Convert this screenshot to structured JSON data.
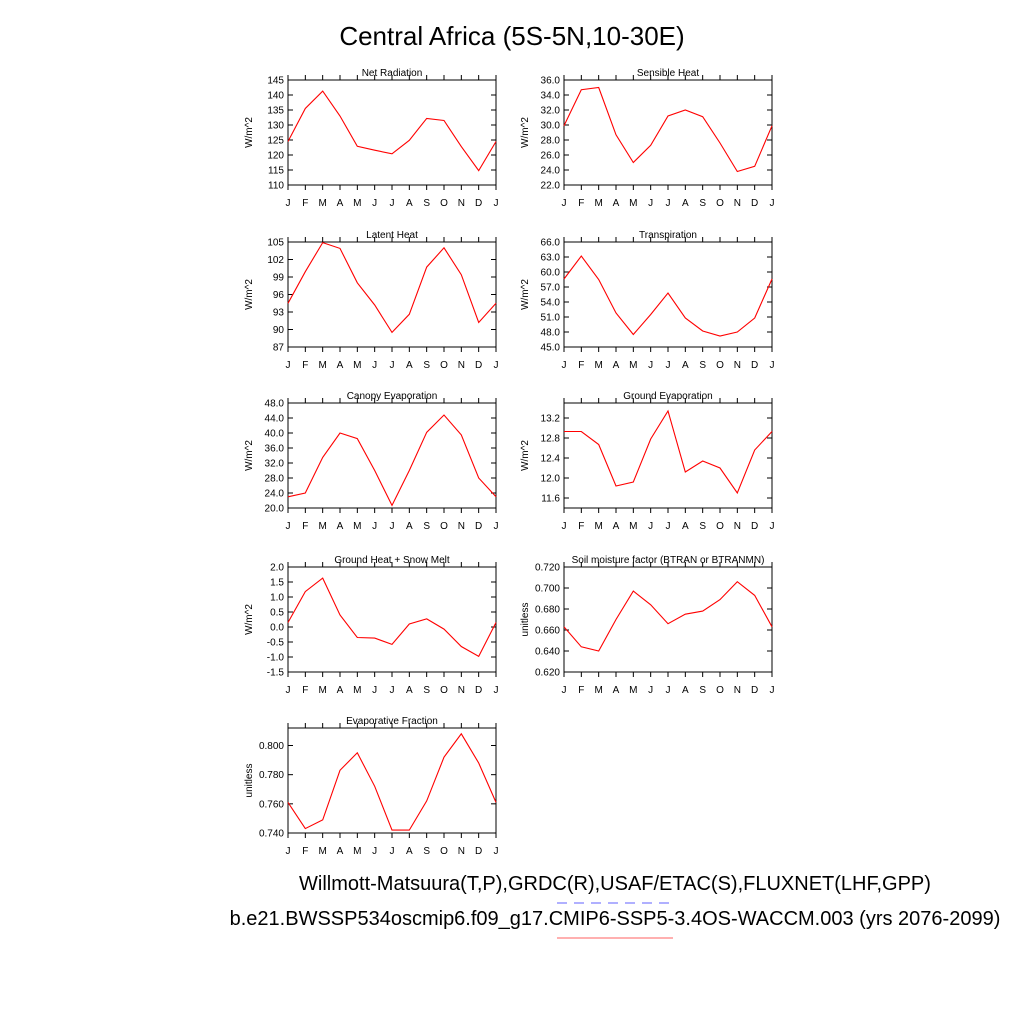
{
  "title": "Central Africa (5S-5N,10-30E)",
  "legend": {
    "obs_label": "Willmott-Matsuura(T,P),GRDC(R),USAF/ETAC(S),FLUXNET(LHF,GPP)",
    "obs_color": "#8080ff",
    "model_label": "b.e21.BWSSP534oscmip6.f09_g17.CMIP6-SSP5-3.4OS-WACCM.003 (yrs 2076-2099)",
    "model_color": "#ff8080"
  },
  "line_color": "#ff0000",
  "months": [
    "J",
    "F",
    "M",
    "A",
    "M",
    "J",
    "J",
    "A",
    "S",
    "O",
    "N",
    "D",
    "J"
  ],
  "chart_data": [
    {
      "type": "line",
      "title": "Net Radiation",
      "ylabel": "W/m^2",
      "ylim": [
        110,
        145
      ],
      "yticks": [
        110,
        115,
        120,
        125,
        130,
        135,
        140,
        145
      ],
      "ytick_labels": [
        "110",
        "115",
        "120",
        "125",
        "130",
        "135",
        "140",
        "145"
      ],
      "values": [
        124.5,
        135.5,
        141.3,
        133.0,
        122.9,
        121.6,
        120.4,
        124.9,
        132.2,
        131.5,
        122.8,
        114.8,
        124.5
      ]
    },
    {
      "type": "line",
      "title": "Sensible Heat",
      "ylabel": "W/m^2",
      "ylim": [
        22,
        36
      ],
      "yticks": [
        22,
        24,
        26,
        28,
        30,
        32,
        34,
        36
      ],
      "ytick_labels": [
        "22.0",
        "24.0",
        "26.0",
        "28.0",
        "30.0",
        "32.0",
        "34.0",
        "36.0"
      ],
      "values": [
        29.9,
        34.7,
        35.0,
        28.7,
        25.0,
        27.3,
        31.2,
        32.0,
        31.1,
        27.6,
        23.8,
        24.5,
        29.9
      ]
    },
    {
      "type": "line",
      "title": "Latent Heat",
      "ylabel": "W/m^2",
      "ylim": [
        87,
        105
      ],
      "yticks": [
        87,
        90,
        93,
        96,
        99,
        102,
        105
      ],
      "ytick_labels": [
        "87",
        "90",
        "93",
        "96",
        "99",
        "102",
        "105"
      ],
      "values": [
        94.5,
        99.9,
        104.9,
        103.9,
        98.0,
        94.2,
        89.5,
        92.6,
        100.7,
        104.0,
        99.4,
        91.2,
        94.5
      ]
    },
    {
      "type": "line",
      "title": "Transpiration",
      "ylabel": "W/m^2",
      "ylim": [
        45,
        66
      ],
      "yticks": [
        45,
        48,
        51,
        54,
        57,
        60,
        63,
        66
      ],
      "ytick_labels": [
        "45.0",
        "48.0",
        "51.0",
        "54.0",
        "57.0",
        "60.0",
        "63.0",
        "66.0"
      ],
      "values": [
        58.6,
        63.2,
        58.5,
        51.8,
        47.5,
        51.5,
        55.8,
        50.8,
        48.2,
        47.2,
        48.0,
        50.8,
        58.6
      ]
    },
    {
      "type": "line",
      "title": "Canopy Evaporation",
      "ylabel": "W/m^2",
      "ylim": [
        20,
        48
      ],
      "yticks": [
        20,
        24,
        28,
        32,
        36,
        40,
        44,
        48
      ],
      "ytick_labels": [
        "20.0",
        "24.0",
        "28.0",
        "32.0",
        "36.0",
        "40.0",
        "44.0",
        "48.0"
      ],
      "values": [
        23.0,
        24.0,
        33.5,
        40.0,
        38.5,
        30.0,
        20.7,
        30.0,
        40.2,
        44.8,
        39.5,
        28.0,
        23.0
      ]
    },
    {
      "type": "line",
      "title": "Ground Evaporation",
      "ylabel": "W/m^2",
      "ylim": [
        11.4,
        13.5
      ],
      "yticks": [
        11.6,
        12.0,
        12.4,
        12.8,
        13.2
      ],
      "ytick_labels": [
        "11.6",
        "12.0",
        "12.4",
        "12.8",
        "13.2"
      ],
      "values": [
        12.93,
        12.93,
        12.67,
        11.84,
        11.92,
        12.78,
        13.34,
        12.12,
        12.34,
        12.2,
        11.7,
        12.56,
        12.93
      ]
    },
    {
      "type": "line",
      "title": "Ground Heat + Snow Melt",
      "ylabel": "W/m^2",
      "ylim": [
        -1.5,
        2.0
      ],
      "yticks": [
        -1.5,
        -1.0,
        -0.5,
        0.0,
        0.5,
        1.0,
        1.5,
        2.0
      ],
      "ytick_labels": [
        "-1.5",
        "-1.0",
        "-0.5",
        "0.0",
        "0.5",
        "1.0",
        "1.5",
        "2.0"
      ],
      "values": [
        0.15,
        1.18,
        1.63,
        0.4,
        -0.35,
        -0.37,
        -0.58,
        0.1,
        0.27,
        -0.07,
        -0.65,
        -0.98,
        0.15
      ]
    },
    {
      "type": "line",
      "title": "Soil moisture factor (BTRAN or BTRANMN)",
      "ylabel": "unitless",
      "ylim": [
        0.62,
        0.72
      ],
      "yticks": [
        0.62,
        0.64,
        0.66,
        0.68,
        0.7,
        0.72
      ],
      "ytick_labels": [
        "0.620",
        "0.640",
        "0.660",
        "0.680",
        "0.700",
        "0.720"
      ],
      "values": [
        0.663,
        0.644,
        0.64,
        0.67,
        0.697,
        0.684,
        0.666,
        0.675,
        0.678,
        0.689,
        0.706,
        0.693,
        0.663
      ]
    },
    {
      "type": "line",
      "title": "Evaporative Fraction",
      "ylabel": "unitless",
      "ylim": [
        0.74,
        0.812
      ],
      "yticks": [
        0.74,
        0.76,
        0.78,
        0.8
      ],
      "ytick_labels": [
        "0.740",
        "0.760",
        "0.780",
        "0.800"
      ],
      "values": [
        0.761,
        0.743,
        0.749,
        0.783,
        0.795,
        0.772,
        0.742,
        0.742,
        0.762,
        0.792,
        0.808,
        0.788,
        0.761
      ]
    }
  ]
}
